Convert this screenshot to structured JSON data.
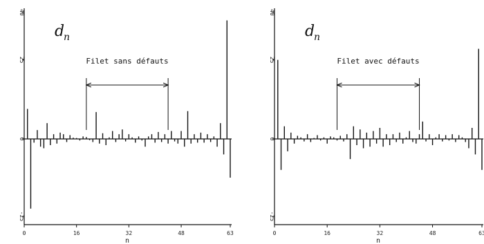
{
  "chart_data": [
    {
      "type": "bar",
      "panel": "left",
      "variable": "d",
      "variable_sub": "n",
      "xlabel": "n",
      "xlim": [
        0,
        63
      ],
      "ylim": [
        -25,
        40
      ],
      "xticks": [
        "0",
        "16",
        "32",
        "48",
        "63"
      ],
      "yticks": [
        "-25",
        "0",
        "25",
        "40"
      ],
      "annotation": "Filet sans défauts",
      "annotation_range": [
        19,
        44
      ],
      "n": [
        0,
        1,
        2,
        3,
        4,
        5,
        6,
        7,
        8,
        9,
        10,
        11,
        12,
        13,
        14,
        15,
        16,
        17,
        18,
        19,
        20,
        21,
        22,
        23,
        24,
        25,
        26,
        27,
        28,
        29,
        30,
        31,
        32,
        33,
        34,
        35,
        36,
        37,
        38,
        39,
        40,
        41,
        42,
        43,
        44,
        45,
        46,
        47,
        48,
        49,
        50,
        51,
        52,
        53,
        54,
        55,
        56,
        57,
        58,
        59,
        60,
        61,
        62,
        63
      ],
      "values": [
        0,
        9.5,
        -22.5,
        -1.2,
        2.8,
        -2.5,
        -3,
        5,
        -2,
        1.5,
        -1.5,
        2,
        1.5,
        -1,
        1.2,
        0.4,
        0.3,
        -0.5,
        0.8,
        0.6,
        -0.4,
        -1,
        8.5,
        -1.5,
        1.8,
        -2,
        0.5,
        2.5,
        -1,
        1.5,
        3,
        -0.8,
        1.5,
        0.5,
        -1.2,
        0.8,
        -0.5,
        -2.5,
        0.8,
        1.5,
        -1.2,
        2.2,
        -1,
        1.5,
        -1.5,
        2.5,
        -0.8,
        -1.5,
        2.5,
        -2.5,
        8.8,
        -1.5,
        1.5,
        -1.2,
        2,
        -1.2,
        1.5,
        -1,
        0.8,
        -2.5,
        5,
        -5,
        37.5,
        -12.5
      ]
    },
    {
      "type": "bar",
      "panel": "right",
      "variable": "d",
      "variable_sub": "n",
      "xlabel": "n",
      "xlim": [
        0,
        63
      ],
      "ylim": [
        -25,
        40
      ],
      "xticks": [
        "0",
        "16",
        "32",
        "48",
        "63"
      ],
      "yticks": [
        "-25",
        "0",
        "25",
        "40"
      ],
      "annotation": "Filet avec défauts",
      "annotation_range": [
        19,
        44
      ],
      "n": [
        0,
        1,
        2,
        3,
        4,
        5,
        6,
        7,
        8,
        9,
        10,
        11,
        12,
        13,
        14,
        15,
        16,
        17,
        18,
        19,
        20,
        21,
        22,
        23,
        24,
        25,
        26,
        27,
        28,
        29,
        30,
        31,
        32,
        33,
        34,
        35,
        36,
        37,
        38,
        39,
        40,
        41,
        42,
        43,
        44,
        45,
        46,
        47,
        48,
        49,
        50,
        51,
        52,
        53,
        54,
        55,
        56,
        57,
        58,
        59,
        60,
        61,
        62,
        63
      ],
      "values": [
        0,
        25,
        -10,
        4,
        -4,
        2,
        -1.5,
        1,
        0.5,
        -0.8,
        1.5,
        -1,
        0.3,
        1.2,
        -0.5,
        0.5,
        -1.5,
        0.8,
        0.5,
        -0.5,
        1,
        -0.8,
        1.5,
        -6.5,
        4,
        -2,
        3,
        -3,
        2,
        -2.5,
        2.5,
        -1.5,
        3.5,
        -2.5,
        1.5,
        -2,
        1.5,
        -1,
        2,
        -1.5,
        0.5,
        2.5,
        -1,
        -1.5,
        1.5,
        5.5,
        -0.8,
        1.5,
        -2,
        0.5,
        1.5,
        -0.8,
        1.2,
        -0.5,
        1.5,
        -1,
        1.2,
        0.5,
        -1,
        -3,
        3.5,
        -5,
        28.5,
        -10
      ]
    }
  ]
}
